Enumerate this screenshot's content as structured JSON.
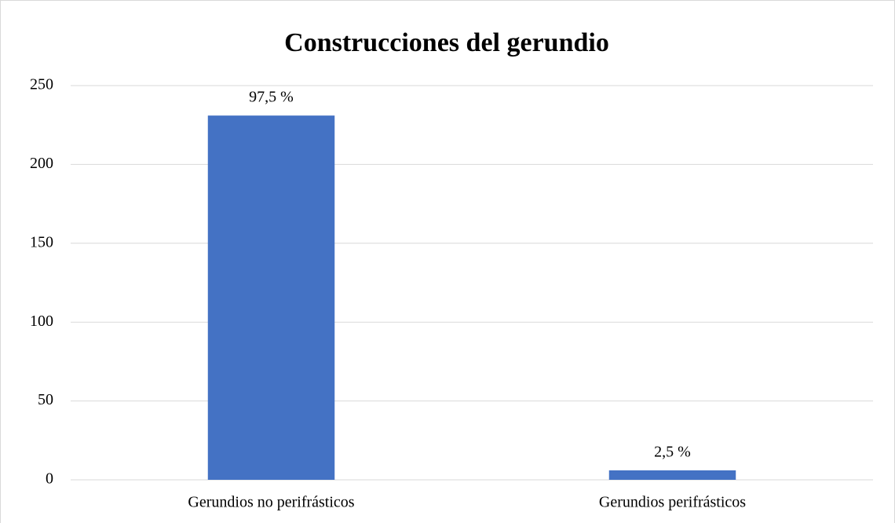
{
  "chart_data": {
    "type": "bar",
    "title": "Construcciones del gerundio",
    "categories": [
      "Gerundios no perifrásticos",
      "Gerundios perifrásticos"
    ],
    "values": [
      231,
      6
    ],
    "color": "#4472c4",
    "annotations": [
      "97,5 %",
      "2,5 %"
    ],
    "ylim": [
      0,
      250
    ],
    "yticks": [
      0,
      50,
      100,
      150,
      200,
      250
    ],
    "grid": true
  }
}
